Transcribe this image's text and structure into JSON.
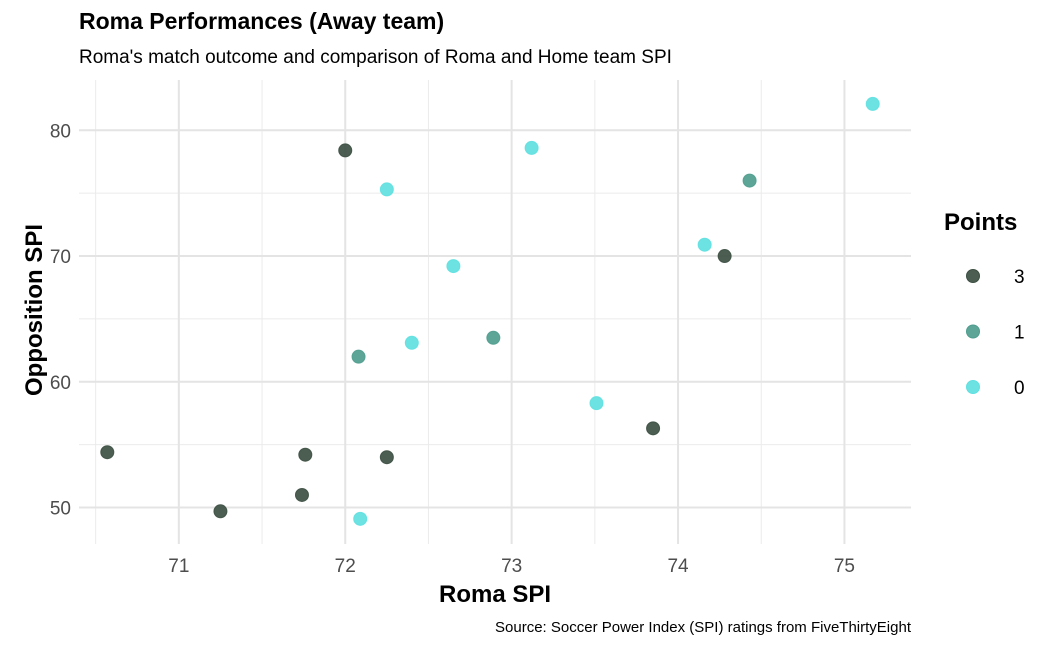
{
  "chart_data": {
    "type": "scatter",
    "title": "Roma Performances (Away team)",
    "subtitle": "Roma's match outcome and comparison of Roma and Home team SPI",
    "caption": "Source: Soccer Power Index (SPI) ratings from FiveThirtyEight",
    "xlabel": "Roma SPI",
    "ylabel": "Opposition SPI",
    "xlim": [
      70.4,
      75.4
    ],
    "ylim": [
      47.1,
      84.0
    ],
    "x_ticks": [
      71,
      72,
      73,
      74,
      75
    ],
    "y_ticks": [
      50,
      60,
      70,
      80
    ],
    "grid": true,
    "legend": {
      "title": "Points",
      "position": "right",
      "entries": [
        {
          "label": "3",
          "color": "#3d4f43"
        },
        {
          "label": "1",
          "color": "#4f9d8e"
        },
        {
          "label": "0",
          "color": "#5fe0e0"
        }
      ]
    },
    "series": [
      {
        "name": "3",
        "color": "#3d4f43",
        "points": [
          {
            "x": 72.0,
            "y": 78.4
          },
          {
            "x": 74.28,
            "y": 70.0
          },
          {
            "x": 73.85,
            "y": 56.3
          },
          {
            "x": 70.57,
            "y": 54.4
          },
          {
            "x": 71.76,
            "y": 54.2
          },
          {
            "x": 72.25,
            "y": 54.0
          },
          {
            "x": 71.74,
            "y": 51.0
          },
          {
            "x": 71.25,
            "y": 49.7
          }
        ]
      },
      {
        "name": "1",
        "color": "#4f9d8e",
        "points": [
          {
            "x": 74.43,
            "y": 76.0
          },
          {
            "x": 72.89,
            "y": 63.5
          },
          {
            "x": 72.08,
            "y": 62.0
          }
        ]
      },
      {
        "name": "0",
        "color": "#5fe0e0",
        "points": [
          {
            "x": 75.17,
            "y": 82.1
          },
          {
            "x": 73.12,
            "y": 78.6
          },
          {
            "x": 72.25,
            "y": 75.3
          },
          {
            "x": 74.16,
            "y": 70.9
          },
          {
            "x": 72.65,
            "y": 69.2
          },
          {
            "x": 72.4,
            "y": 63.1
          },
          {
            "x": 73.51,
            "y": 58.3
          },
          {
            "x": 72.09,
            "y": 49.1
          }
        ]
      }
    ]
  }
}
